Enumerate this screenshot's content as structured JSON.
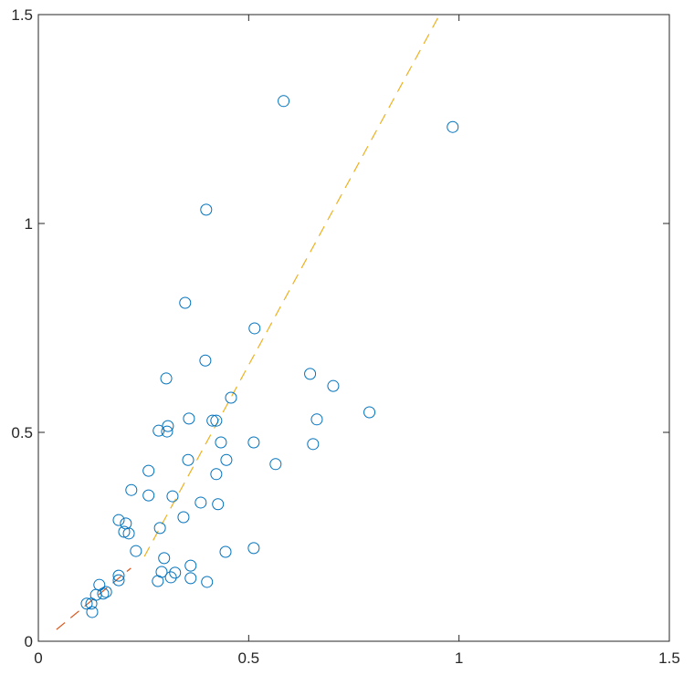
{
  "chart_data": {
    "type": "scatter",
    "xlim": [
      0,
      1.5
    ],
    "ylim": [
      0,
      1.5
    ],
    "xticks": [
      0,
      0.5,
      1,
      1.5
    ],
    "yticks": [
      0,
      0.5,
      1,
      1.5
    ],
    "points": {
      "color": "#0072bd",
      "x": [
        0.583,
        0.985,
        0.399,
        0.349,
        0.514,
        0.397,
        0.304,
        0.646,
        0.701,
        0.458,
        0.787,
        0.358,
        0.414,
        0.423,
        0.662,
        0.308,
        0.286,
        0.306,
        0.653,
        0.512,
        0.434,
        0.356,
        0.447,
        0.564,
        0.262,
        0.423,
        0.221,
        0.262,
        0.319,
        0.386,
        0.427,
        0.345,
        0.191,
        0.208,
        0.289,
        0.204,
        0.215,
        0.232,
        0.445,
        0.512,
        0.299,
        0.362,
        0.325,
        0.293,
        0.315,
        0.191,
        0.191,
        0.362,
        0.401,
        0.284,
        0.145,
        0.161,
        0.154,
        0.137,
        0.115,
        0.126,
        0.128
      ],
      "y": [
        1.293,
        1.231,
        1.033,
        0.81,
        0.749,
        0.672,
        0.629,
        0.64,
        0.611,
        0.583,
        0.548,
        0.533,
        0.528,
        0.528,
        0.531,
        0.515,
        0.504,
        0.502,
        0.472,
        0.476,
        0.476,
        0.434,
        0.434,
        0.424,
        0.408,
        0.4,
        0.362,
        0.349,
        0.347,
        0.332,
        0.328,
        0.297,
        0.29,
        0.282,
        0.271,
        0.262,
        0.258,
        0.216,
        0.214,
        0.223,
        0.199,
        0.181,
        0.164,
        0.166,
        0.153,
        0.157,
        0.146,
        0.151,
        0.142,
        0.144,
        0.135,
        0.118,
        0.114,
        0.111,
        0.09,
        0.09,
        0.07
      ]
    },
    "lines": [
      {
        "color": "#d95319",
        "x": [
          0.043,
          0.22
        ],
        "y": [
          0.028,
          0.175
        ]
      },
      {
        "color": "#edb120",
        "x": [
          0.252,
          0.954
        ],
        "y": [
          0.203,
          1.5
        ]
      }
    ]
  }
}
